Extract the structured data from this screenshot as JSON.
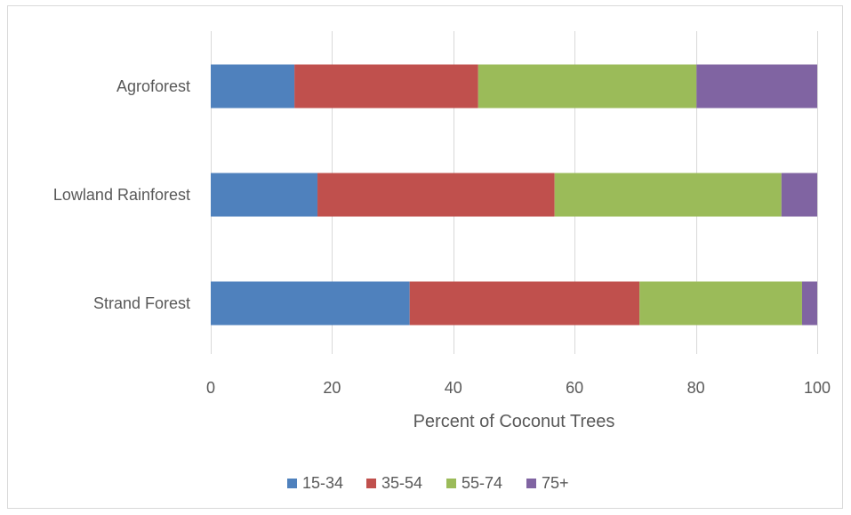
{
  "chart_data": {
    "type": "bar",
    "orientation": "horizontal",
    "stacked": true,
    "categories": [
      "Agroforest",
      "Lowland Rainforest",
      "Strand Forest"
    ],
    "series": [
      {
        "name": "15-34",
        "color": "#4f81bd",
        "values": [
          13.8,
          17.6,
          32.8
        ]
      },
      {
        "name": "35-54",
        "color": "#c0504d",
        "values": [
          30.3,
          39.1,
          37.9
        ]
      },
      {
        "name": "55-74",
        "color": "#9bbb59",
        "values": [
          36.0,
          37.4,
          26.8
        ]
      },
      {
        "name": "75+",
        "color": "#8064a2",
        "values": [
          19.9,
          5.9,
          2.5
        ]
      }
    ],
    "title": "",
    "xlabel": "Percent of Coconut Trees",
    "ylabel": "",
    "xlim": [
      0,
      100
    ],
    "xticks": [
      0,
      20,
      40,
      60,
      80,
      100
    ],
    "grid": "vertical",
    "legend": "bottom"
  }
}
